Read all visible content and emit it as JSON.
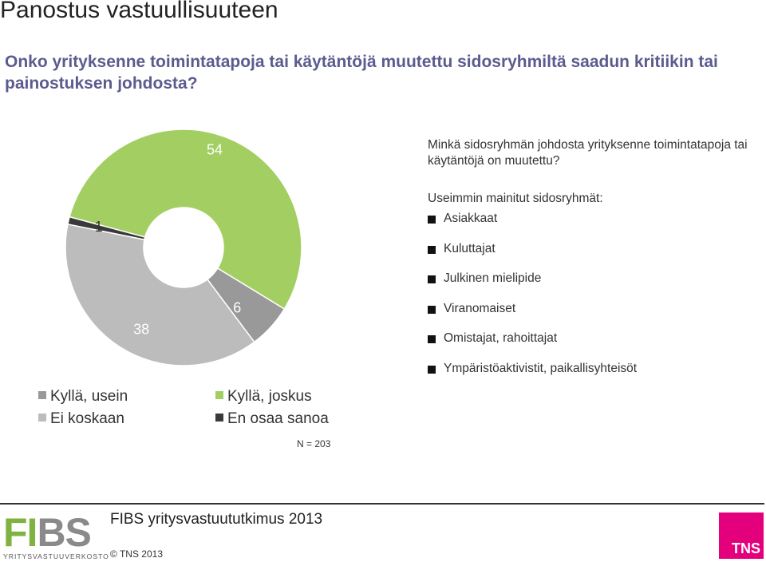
{
  "page": {
    "title": "Panostus vastuullisuuteen",
    "question": "Onko yrityksenne toimintatapoja tai käytäntöjä muutettu sidosryhmiltä saadun kritiikin tai painostuksen johdosta?"
  },
  "chart_data": {
    "type": "pie",
    "variant": "donut",
    "categories": [
      "Kyllä, joskus",
      "Kyllä, usein",
      "Ei koskaan",
      "En osaa sanoa"
    ],
    "values": [
      54,
      6,
      38,
      1
    ],
    "value_labels": [
      "54",
      "6",
      "38",
      "1"
    ],
    "colors": [
      "#a3cf62",
      "#999999",
      "#bcbcbc",
      "#3a3a3a"
    ],
    "legend": [
      {
        "label": "Kyllä, usein",
        "color": "#999999"
      },
      {
        "label": "Kyllä, joskus",
        "color": "#a3cf62"
      },
      {
        "label": "Ei koskaan",
        "color": "#bcbcbc"
      },
      {
        "label": "En osaa sanoa",
        "color": "#3a3a3a"
      }
    ],
    "legend_placement": "bottom-left",
    "n_label": "N = 203"
  },
  "side": {
    "question": "Minkä sidosryhmän johdosta yrityksenne toimintatapoja tai käytäntöjä on muutettu?",
    "subtitle": "Useimmin mainitut sidosryhmät:",
    "groups": [
      "Asiakkaat",
      "Kuluttajat",
      "Julkinen mielipide",
      "Viranomaiset",
      "Omistajat, rahoittajat",
      "Ympäristöaktivistit, paikallisyhteisöt"
    ]
  },
  "footer": {
    "title": "FIBS yritysvastuututkimus 2013",
    "copyright": "© TNS  2013",
    "fibs_logo": {
      "word": "FIBS",
      "subtitle": "YRITYSVASTUUVERKOSTO",
      "colors": [
        "#7fb241",
        "#8a8a8a"
      ]
    },
    "tns_logo": {
      "word": "TNS",
      "color": "#e4007c"
    }
  }
}
